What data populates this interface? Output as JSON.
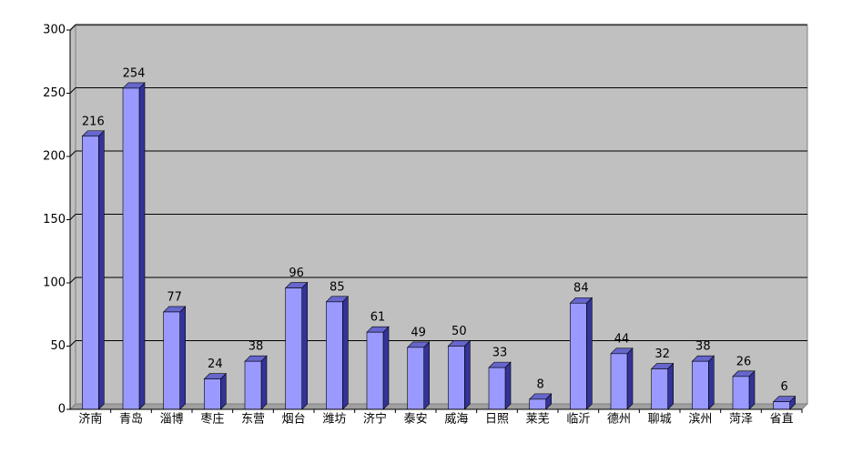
{
  "chart_data": {
    "type": "bar3d",
    "categories": [
      "济南",
      "青岛",
      "淄博",
      "枣庄",
      "东营",
      "烟台",
      "潍坊",
      "济宁",
      "泰安",
      "威海",
      "日照",
      "莱芜",
      "临沂",
      "德州",
      "聊城",
      "滨州",
      "菏泽",
      "省直"
    ],
    "values": [
      216,
      254,
      77,
      24,
      38,
      96,
      85,
      61,
      49,
      50,
      33,
      8,
      84,
      44,
      32,
      38,
      26,
      6
    ],
    "color": "#9999ff",
    "ylim": [
      0,
      300
    ],
    "yticks": [
      0,
      50,
      100,
      150,
      200,
      250,
      300
    ],
    "grid": true
  }
}
